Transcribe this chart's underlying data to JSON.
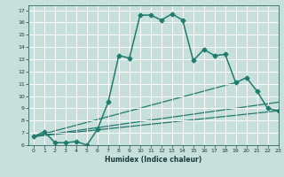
{
  "xlabel": "Humidex (Indice chaleur)",
  "ylabel": "",
  "bg_color": "#c8e0dc",
  "grid_color": "#ffffff",
  "line_color": "#1e7b6e",
  "xlim": [
    -0.5,
    23
  ],
  "ylim": [
    6,
    17.4
  ],
  "xticks": [
    0,
    1,
    2,
    3,
    4,
    5,
    6,
    7,
    8,
    9,
    10,
    11,
    12,
    13,
    14,
    15,
    16,
    17,
    18,
    19,
    20,
    21,
    22,
    23
  ],
  "yticks": [
    6,
    7,
    8,
    9,
    10,
    11,
    12,
    13,
    14,
    15,
    16,
    17
  ],
  "main_x": [
    0,
    1,
    2,
    3,
    4,
    5,
    6,
    7,
    8,
    9,
    10,
    11,
    12,
    13,
    14,
    15,
    16,
    17,
    18,
    19,
    20,
    21,
    22,
    23
  ],
  "main_y": [
    6.7,
    7.1,
    6.2,
    6.2,
    6.3,
    6.0,
    7.3,
    9.5,
    13.3,
    13.1,
    16.6,
    16.6,
    16.2,
    16.7,
    16.2,
    12.9,
    13.8,
    13.3,
    13.4,
    11.1,
    11.5,
    10.4,
    9.0,
    8.8
  ],
  "line1_x": [
    0,
    23
  ],
  "line1_y": [
    6.7,
    8.8
  ],
  "line2_x": [
    0,
    23
  ],
  "line2_y": [
    6.7,
    9.5
  ],
  "line3_x": [
    0,
    19
  ],
  "line3_y": [
    6.7,
    11.1
  ]
}
